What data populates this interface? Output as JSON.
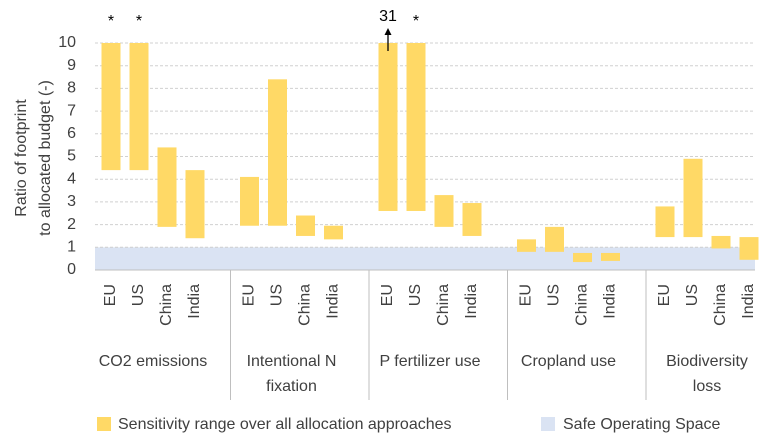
{
  "chart_data": {
    "type": "floating-bar",
    "ylabel": "Ratio of footprint\nto allocated budget (-)",
    "ylim": [
      0,
      10
    ],
    "yticks": [
      0,
      1,
      2,
      3,
      4,
      5,
      6,
      7,
      8,
      9,
      10
    ],
    "grid": true,
    "bar_color": "#ffd966",
    "bar_name": "Sensitivity range over all allocation approaches",
    "safe_space": [
      0,
      1
    ],
    "safe_color": "#dae3f3",
    "safe_name": "Safe Operating Space",
    "groups": [
      {
        "name": "CO2 emissions",
        "categories": [
          "EU",
          "US",
          "China",
          "India"
        ],
        "low": [
          4.4,
          4.4,
          1.9,
          1.4
        ],
        "high": [
          10,
          10,
          5.4,
          4.4
        ],
        "notes": [
          "*",
          "*",
          null,
          null
        ]
      },
      {
        "name": "Intentional N\nfixation",
        "categories": [
          "EU",
          "US",
          "China",
          "India"
        ],
        "low": [
          1.95,
          1.95,
          1.5,
          1.35
        ],
        "high": [
          4.1,
          8.4,
          2.4,
          1.95
        ],
        "notes": [
          null,
          null,
          null,
          null
        ]
      },
      {
        "name": "P fertilizer use",
        "categories": [
          "EU",
          "US",
          "China",
          "India"
        ],
        "low": [
          2.6,
          2.6,
          1.9,
          1.5
        ],
        "high": [
          10,
          10,
          3.3,
          2.95
        ],
        "notes": [
          "31",
          "*",
          null,
          null
        ]
      },
      {
        "name": "Cropland use",
        "categories": [
          "EU",
          "US",
          "China",
          "India"
        ],
        "low": [
          0.8,
          0.8,
          0.35,
          0.4
        ],
        "high": [
          1.35,
          1.9,
          0.75,
          0.75
        ],
        "notes": [
          null,
          null,
          null,
          null
        ]
      },
      {
        "name": "Biodiversity\nloss",
        "categories": [
          "EU",
          "US",
          "China",
          "India"
        ],
        "low": [
          1.45,
          1.45,
          0.95,
          0.45
        ],
        "high": [
          2.8,
          4.9,
          1.5,
          1.45
        ],
        "notes": [
          null,
          null,
          null,
          null
        ]
      }
    ]
  }
}
